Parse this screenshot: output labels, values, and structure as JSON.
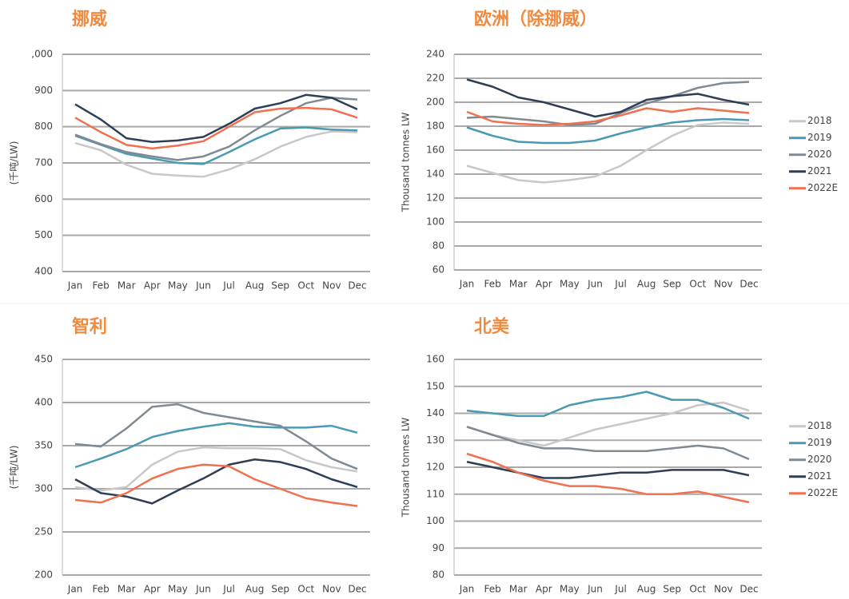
{
  "chart_data": [
    {
      "type": "line",
      "title": "挪威",
      "ylabel": "(千吨/LW)",
      "categories": [
        "Jan",
        "Feb",
        "Mar",
        "Apr",
        "May",
        "Jun",
        "Jul",
        "Aug",
        "Sep",
        "Oct",
        "Nov",
        "Dec"
      ],
      "ylim": [
        400,
        1000
      ],
      "yticks": [
        400,
        500,
        600,
        700,
        800,
        900,
        {
          "value": 1000,
          "label": ",000"
        }
      ],
      "grid": true,
      "series": [
        {
          "color": "#c8c8c8",
          "values": [
            755,
            735,
            695,
            670,
            665,
            662,
            682,
            710,
            745,
            772,
            787,
            785
          ]
        },
        {
          "color": "#4a9ab5",
          "values": [
            775,
            750,
            725,
            712,
            700,
            697,
            730,
            765,
            795,
            798,
            792,
            790
          ]
        },
        {
          "color": "#7f8a93",
          "values": [
            778,
            752,
            730,
            718,
            708,
            718,
            745,
            790,
            830,
            865,
            880,
            875
          ]
        },
        {
          "color": "#2e3f55",
          "values": [
            862,
            820,
            768,
            758,
            762,
            772,
            808,
            850,
            865,
            888,
            880,
            848
          ]
        },
        {
          "color": "#f07050",
          "values": [
            825,
            785,
            750,
            740,
            748,
            760,
            800,
            840,
            850,
            852,
            848,
            825
          ]
        }
      ]
    },
    {
      "type": "line",
      "title": "欧洲（除挪威）",
      "ylabel": "Thousand tonnes LW",
      "categories": [
        "Jan",
        "Feb",
        "Mar",
        "Apr",
        "May",
        "Jun",
        "Jul",
        "Aug",
        "Sep",
        "Oct",
        "Nov",
        "Dec"
      ],
      "ylim": [
        60,
        240
      ],
      "yticks": [
        60,
        80,
        100,
        120,
        140,
        160,
        180,
        200,
        220,
        240
      ],
      "grid": true,
      "legend": "right",
      "series": [
        {
          "name": "2018",
          "color": "#c8c8c8",
          "values": [
            147,
            141,
            135,
            133,
            135,
            138,
            147,
            160,
            172,
            181,
            183,
            182
          ]
        },
        {
          "name": "2019",
          "color": "#4a9ab5",
          "values": [
            179,
            172,
            167,
            166,
            166,
            168,
            174,
            179,
            183,
            185,
            186,
            185
          ]
        },
        {
          "name": "2020",
          "color": "#7f8a93",
          "values": [
            187,
            188,
            186,
            184,
            181,
            182,
            191,
            199,
            205,
            212,
            216,
            217
          ]
        },
        {
          "name": "2021",
          "color": "#2e3f55",
          "values": [
            219,
            213,
            204,
            200,
            194,
            188,
            192,
            202,
            205,
            207,
            202,
            198
          ]
        },
        {
          "name": "2022E",
          "color": "#f07050",
          "values": [
            192,
            184,
            182,
            181,
            182,
            184,
            189,
            195,
            192,
            195,
            193,
            191
          ]
        }
      ]
    },
    {
      "type": "line",
      "title": "智利",
      "ylabel": "(千吨/LW)",
      "categories": [
        "Jan",
        "Feb",
        "Mar",
        "Apr",
        "May",
        "Jun",
        "Jul",
        "Aug",
        "Sep",
        "Oct",
        "Nov",
        "Dec"
      ],
      "ylim": [
        200,
        450
      ],
      "yticks": [
        200,
        250,
        300,
        350,
        400,
        450
      ],
      "grid": true,
      "series": [
        {
          "color": "#c8c8c8",
          "values": [
            302,
            298,
            302,
            328,
            343,
            348,
            347,
            347,
            346,
            333,
            325,
            320
          ]
        },
        {
          "color": "#4a9ab5",
          "values": [
            325,
            335,
            346,
            360,
            367,
            372,
            376,
            372,
            371,
            371,
            373,
            365
          ]
        },
        {
          "color": "#7f8a93",
          "values": [
            352,
            349,
            370,
            395,
            398,
            388,
            383,
            378,
            373,
            355,
            335,
            323
          ]
        },
        {
          "color": "#2e3f55",
          "values": [
            311,
            295,
            291,
            283,
            298,
            312,
            328,
            334,
            331,
            323,
            311,
            302
          ]
        },
        {
          "color": "#f07050",
          "values": [
            287,
            284,
            295,
            312,
            323,
            328,
            326,
            311,
            300,
            289,
            284,
            280
          ]
        }
      ]
    },
    {
      "type": "line",
      "title": "北美",
      "ylabel": "Thousand tonnes LW",
      "categories": [
        "Jan",
        "Feb",
        "Mar",
        "Apr",
        "May",
        "Jun",
        "Jul",
        "Aug",
        "Sep",
        "Oct",
        "Nov",
        "Dec"
      ],
      "ylim": [
        80,
        160
      ],
      "yticks": [
        80,
        90,
        100,
        110,
        120,
        130,
        140,
        150,
        160
      ],
      "grid": true,
      "legend": "right",
      "series": [
        {
          "name": "2018",
          "color": "#c8c8c8",
          "values": [
            135,
            132,
            130,
            128,
            131,
            134,
            136,
            138,
            140,
            143,
            144,
            141
          ]
        },
        {
          "name": "2019",
          "color": "#4a9ab5",
          "values": [
            141,
            140,
            139,
            139,
            143,
            145,
            146,
            148,
            145,
            145,
            142,
            138
          ]
        },
        {
          "name": "2020",
          "color": "#7f8a93",
          "values": [
            135,
            132,
            129,
            127,
            127,
            126,
            126,
            126,
            127,
            128,
            127,
            123
          ]
        },
        {
          "name": "2021",
          "color": "#2e3f55",
          "values": [
            122,
            120,
            118,
            116,
            116,
            117,
            118,
            118,
            119,
            119,
            119,
            117
          ]
        },
        {
          "name": "2022E",
          "color": "#f07050",
          "values": [
            125,
            122,
            118,
            115,
            113,
            113,
            112,
            110,
            110,
            111,
            109,
            107
          ]
        }
      ]
    }
  ]
}
